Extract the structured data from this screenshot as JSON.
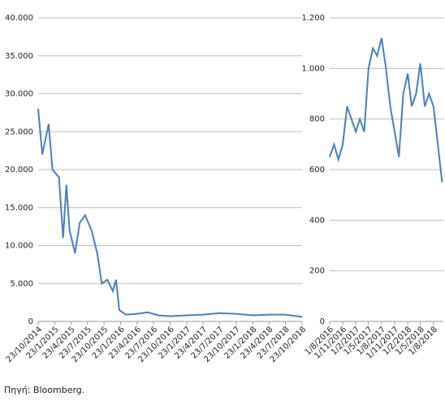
{
  "chart_data": [
    {
      "type": "line",
      "x": [
        "23/10/2014",
        "15/11/2014",
        "20/12/2014",
        "10/1/2015",
        "15/2/2015",
        "10/3/2015",
        "28/3/2015",
        "15/4/2015",
        "15/5/2015",
        "10/6/2015",
        "10/7/2015",
        "15/8/2015",
        "15/9/2015",
        "10/10/2015",
        "10/11/2015",
        "10/12/2015",
        "28/12/2015",
        "15/1/2016",
        "20/2/2016",
        "20/4/2016",
        "20/6/2016",
        "20/8/2016",
        "23/10/2016",
        "23/1/2017",
        "23/4/2017",
        "23/7/2017",
        "23/10/2017",
        "23/1/2018",
        "23/4/2018",
        "23/7/2018",
        "23/10/2018"
      ],
      "series": [
        {
          "name": "left",
          "color": "#4a7ebb",
          "values": [
            28000,
            22000,
            26000,
            20000,
            19000,
            11000,
            18000,
            12000,
            9000,
            13000,
            14000,
            12000,
            9000,
            5000,
            5500,
            4000,
            5500,
            1500,
            900,
            1000,
            1200,
            800,
            700,
            800,
            900,
            1100,
            1000,
            800,
            900,
            900,
            600
          ]
        }
      ],
      "xlim": [
        "23/10/2014",
        "23/10/2018"
      ],
      "xticks": [
        "23/10/2014",
        "23/1/2015",
        "23/4/2015",
        "23/7/2015",
        "23/10/2015",
        "23/1/2016",
        "23/4/2016",
        "23/7/2016",
        "23/10/2016",
        "23/1/2017",
        "23/4/2017",
        "23/7/2017",
        "23/10/2017",
        "23/1/2018",
        "23/4/2018",
        "23/7/2018",
        "23/10/2018"
      ],
      "ylim": [
        0,
        40000
      ],
      "yticks": [
        0,
        {
          "value": 5000,
          "label": "5.000"
        },
        {
          "value": 10000,
          "label": "10.000"
        },
        {
          "value": 15000,
          "label": "15.000"
        },
        {
          "value": 20000,
          "label": "20.000"
        },
        {
          "value": 25000,
          "label": "25.000"
        },
        {
          "value": 30000,
          "label": "30.000"
        },
        {
          "value": 35000,
          "label": "35.000"
        },
        {
          "value": 40000,
          "label": "40.000"
        }
      ],
      "grid": true
    },
    {
      "type": "line",
      "x": [
        "1/8/2016",
        "1/9/2016",
        "1/10/2016",
        "1/11/2016",
        "1/12/2016",
        "1/1/2017",
        "1/2/2017",
        "1/3/2017",
        "1/4/2017",
        "1/5/2017",
        "1/6/2017",
        "1/7/2017",
        "1/8/2017",
        "1/9/2017",
        "1/10/2017",
        "1/11/2017",
        "1/12/2017",
        "1/1/2018",
        "1/2/2018",
        "1/3/2018",
        "1/4/2018",
        "1/5/2018",
        "1/6/2018",
        "1/7/2018",
        "1/8/2018",
        "1/9/2018",
        "1/10/2018"
      ],
      "series": [
        {
          "name": "right",
          "color": "#4a7ebb",
          "values": [
            650,
            700,
            640,
            700,
            850,
            800,
            750,
            800,
            750,
            1000,
            1080,
            1050,
            1120,
            1000,
            850,
            750,
            650,
            900,
            980,
            850,
            900,
            1020,
            850,
            900,
            850,
            700,
            550
          ]
        }
      ],
      "xlim": [
        "1/8/2016",
        "10/10/2018"
      ],
      "xticks": [
        "1/8/2016",
        "1/11/2016",
        "1/2/2017",
        "1/5/2017",
        "1/8/2017",
        "1/11/2017",
        "1/2/2018",
        "1/5/2018",
        "1/8/2018"
      ],
      "ylim": [
        0,
        1200
      ],
      "yticks": [
        0,
        200,
        400,
        600,
        800,
        {
          "value": 1000,
          "label": "1.000"
        },
        {
          "value": 1200,
          "label": "1.200"
        }
      ],
      "grid": true
    }
  ],
  "source": "Πηγή: Bloomberg."
}
